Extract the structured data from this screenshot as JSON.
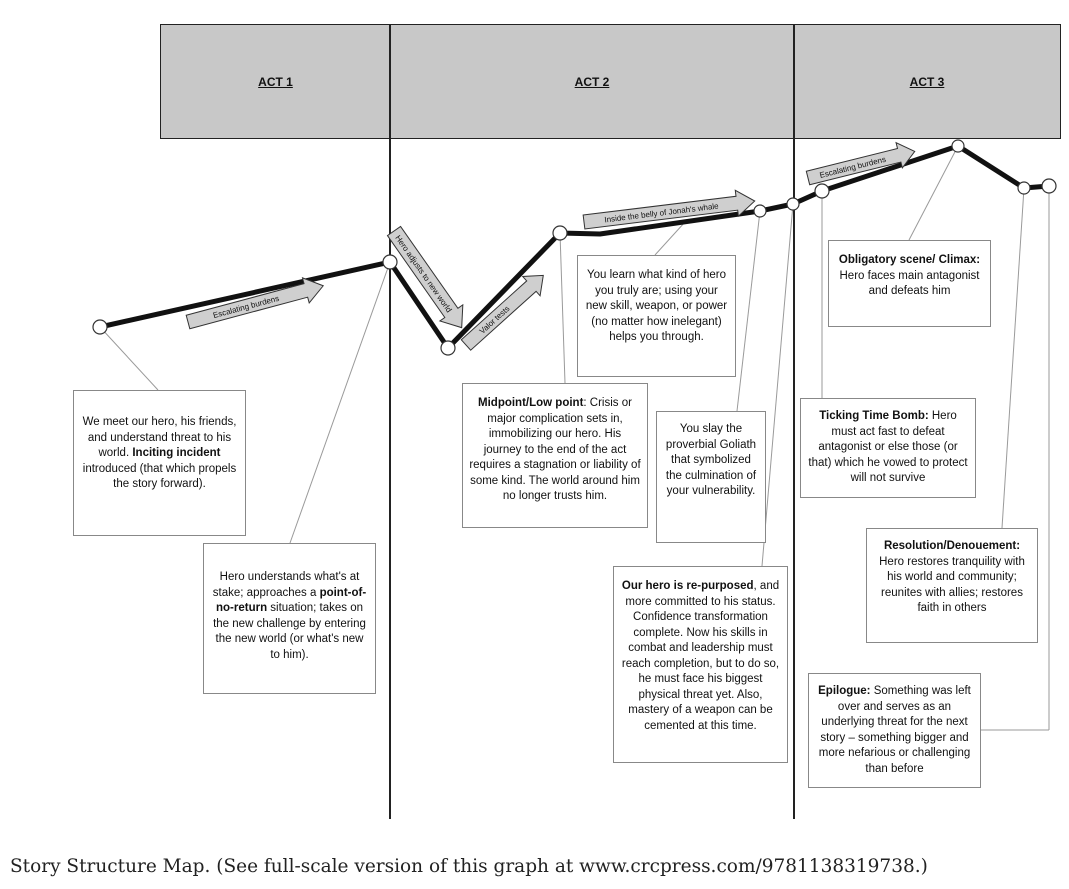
{
  "acts": [
    {
      "label": "ACT 1"
    },
    {
      "label": "ACT 2"
    },
    {
      "label": "ACT 3"
    }
  ],
  "arrows": {
    "escalating_1": "Escalating burdens",
    "hero_adjusts": "Hero adjusts to new world",
    "valor_tests": "Valor tests",
    "jonah": "Inside the belly of Jonah's whale",
    "escalating_2": "Escalating burdens"
  },
  "boxes": {
    "meet_hero": {
      "pre": "We meet our hero, his friends, and understand threat to his world. ",
      "bold": "Inciting incident",
      "post": " introduced (that which propels the story forward)."
    },
    "stakes": {
      "pre": "Hero understands what's at stake; approaches a ",
      "bold": "point-of-no-return",
      "post": " situation; takes on the new challenge by entering the new world (or what's new to him)."
    },
    "midpoint": {
      "bold": "Midpoint/Low point",
      "post": ": Crisis or major complication sets in, immobilizing our hero.  His journey to the end of the act requires a stagnation or liability of some kind. The world around him no longer trusts him."
    },
    "learn": {
      "text": "You learn what kind of hero you truly are; using your new skill, weapon, or power (no matter how inelegant) helps you through."
    },
    "goliath": {
      "text": "You slay the proverbial Goliath that symbolized the culmination of your vulnerability."
    },
    "repurposed": {
      "bold": "Our hero is re-purposed",
      "post": ", and more committed to his status. Confidence transformation complete. Now his skills in combat and leadership must reach completion, but to do so, he must face his biggest physical threat yet. Also, mastery of a weapon can be cemented at this time."
    },
    "climax": {
      "bold": "Obligatory scene/ Climax:",
      "post": " Hero faces main antagonist and defeats him"
    },
    "timebomb": {
      "bold": "Ticking Time Bomb:",
      "post": " Hero must act fast to defeat antagonist or else those (or that) which he vowed to protect will not survive"
    },
    "resolution": {
      "bold": "Resolution/Denouement:",
      "post": " Hero restores tranquility with his world and community; reunites with allies; restores faith in others"
    },
    "epilogue": {
      "bold": "Epilogue:",
      "post": " Something was left over and serves as an underlying threat for the next story – something bigger and more nefarious or challenging than before"
    }
  },
  "caption": "Story Structure Map. (See full-scale version of this graph at www.crcpress.com/9781138319738.)"
}
